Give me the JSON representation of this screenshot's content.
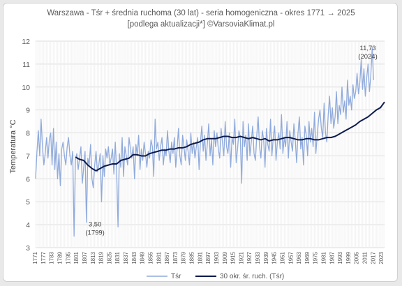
{
  "chart_data": {
    "type": "line",
    "title_line1": "Warszawa - Tśr + średnia ruchoma (30 lat) - seria homogeniczna - okres 1771 → 2025",
    "title_line2": "[podlega aktualizacji*] ©VarsoviaKlimat.pl",
    "ylabel": "Temperatura °C",
    "xlabel": "",
    "ylim": [
      3,
      12
    ],
    "yticks": [
      3,
      4,
      5,
      6,
      7,
      8,
      9,
      10,
      11,
      12
    ],
    "xlim": [
      1771,
      2025
    ],
    "xticks": [
      1771,
      1777,
      1783,
      1789,
      1795,
      1801,
      1807,
      1813,
      1819,
      1825,
      1831,
      1837,
      1843,
      1849,
      1855,
      1861,
      1867,
      1873,
      1879,
      1885,
      1891,
      1897,
      1903,
      1909,
      1915,
      1921,
      1927,
      1933,
      1939,
      1945,
      1951,
      1957,
      1963,
      1969,
      1975,
      1981,
      1987,
      1993,
      1999,
      2005,
      2011,
      2017,
      2023
    ],
    "grid": true,
    "legend_position": "bottom",
    "colors": {
      "annual": "#8faadc",
      "moving_avg": "#0d1b4c"
    },
    "series": [
      {
        "name": "Tśr",
        "x_start": 1771,
        "values": [
          6.0,
          7.2,
          8.1,
          7.0,
          8.6,
          7.4,
          6.6,
          7.1,
          7.8,
          6.9,
          7.7,
          8.0,
          6.6,
          8.2,
          6.4,
          7.6,
          6.0,
          7.1,
          5.7,
          7.3,
          7.6,
          7.0,
          6.6,
          7.4,
          7.8,
          7.0,
          6.6,
          7.2,
          3.5,
          6.8,
          7.1,
          6.4,
          6.9,
          7.4,
          5.8,
          6.5,
          7.2,
          4.1,
          6.9,
          6.6,
          7.5,
          6.0,
          5.6,
          6.6,
          7.2,
          6.3,
          6.6,
          7.1,
          5.0,
          7.0,
          6.1,
          7.3,
          6.9,
          7.4,
          6.6,
          6.9,
          7.3,
          6.2,
          7.6,
          6.3,
          3.9,
          7.1,
          6.5,
          7.8,
          6.1,
          7.4,
          7.0,
          6.6,
          7.8,
          7.3,
          6.9,
          7.4,
          6.0,
          7.5,
          7.0,
          7.9,
          6.4,
          7.3,
          6.8,
          7.6,
          7.1,
          6.5,
          7.2,
          6.9,
          7.7,
          7.4,
          6.1,
          8.6,
          7.3,
          7.6,
          6.8,
          7.4,
          7.8,
          6.6,
          7.3,
          7.0,
          8.1,
          7.2,
          6.7,
          7.6,
          7.1,
          7.8,
          6.5,
          7.3,
          8.2,
          7.0,
          6.6,
          7.9,
          7.4,
          6.8,
          7.7,
          7.2,
          6.6,
          8.0,
          7.1,
          7.6,
          6.9,
          7.4,
          7.8,
          6.4,
          7.6,
          8.3,
          7.2,
          7.9,
          6.8,
          7.5,
          8.4,
          7.0,
          7.7,
          6.6,
          8.1,
          7.4,
          8.0,
          7.3,
          6.9,
          8.2,
          7.6,
          7.0,
          8.5,
          7.4,
          7.1,
          8.0,
          6.5,
          7.8,
          7.5,
          8.6,
          6.7,
          7.3,
          8.1,
          7.8,
          5.8,
          8.5,
          7.4,
          7.9,
          6.8,
          8.4,
          7.0,
          7.6,
          8.3,
          7.1,
          6.8,
          7.9,
          8.7,
          7.4,
          6.9,
          8.1,
          7.7,
          6.5,
          8.2,
          7.5,
          7.2,
          8.6,
          7.0,
          7.8,
          8.3,
          6.8,
          7.6,
          8.0,
          7.3,
          8.8,
          7.1,
          7.8,
          7.4,
          8.5,
          6.9,
          8.1,
          7.6,
          7.2,
          8.4,
          7.7,
          6.7,
          8.0,
          8.7,
          7.3,
          7.8,
          6.6,
          8.3,
          7.9,
          7.0,
          8.5,
          7.6,
          8.2,
          7.4,
          8.9,
          7.1,
          7.9,
          8.6,
          9.0,
          8.2,
          7.8,
          9.3,
          8.0,
          7.6,
          8.8,
          9.6,
          8.4,
          9.1,
          8.2,
          8.7,
          9.8,
          8.4,
          9.2,
          8.8,
          10.0,
          8.9,
          9.4,
          8.6,
          10.3,
          9.2,
          9.6,
          9.0,
          10.1,
          9.5,
          9.8,
          10.6,
          9.7,
          10.2,
          11.2,
          9.9,
          10.8,
          9.6,
          10.4,
          11.0,
          9.8,
          10.5,
          11.73,
          10.3
        ],
        "annotation_min": {
          "year": 1799,
          "value": 3.5,
          "label": "3,50",
          "label_year": "(1799)"
        },
        "annotation_max": {
          "year": 2024,
          "value": 11.73,
          "label": "11,73",
          "label_year": "(2024)"
        }
      },
      {
        "name": "30 okr. śr. ruch. (Tśr)",
        "points": [
          [
            1800,
            6.95
          ],
          [
            1803,
            6.85
          ],
          [
            1806,
            6.8
          ],
          [
            1809,
            6.6
          ],
          [
            1812,
            6.45
          ],
          [
            1815,
            6.35
          ],
          [
            1818,
            6.45
          ],
          [
            1821,
            6.55
          ],
          [
            1824,
            6.6
          ],
          [
            1827,
            6.65
          ],
          [
            1830,
            6.65
          ],
          [
            1833,
            6.8
          ],
          [
            1836,
            6.85
          ],
          [
            1839,
            6.9
          ],
          [
            1842,
            7.05
          ],
          [
            1845,
            7.05
          ],
          [
            1848,
            7.0
          ],
          [
            1851,
            7.0
          ],
          [
            1854,
            7.1
          ],
          [
            1857,
            7.15
          ],
          [
            1860,
            7.2
          ],
          [
            1863,
            7.25
          ],
          [
            1866,
            7.25
          ],
          [
            1869,
            7.3
          ],
          [
            1872,
            7.3
          ],
          [
            1875,
            7.35
          ],
          [
            1878,
            7.35
          ],
          [
            1881,
            7.4
          ],
          [
            1884,
            7.5
          ],
          [
            1887,
            7.55
          ],
          [
            1890,
            7.6
          ],
          [
            1893,
            7.7
          ],
          [
            1896,
            7.75
          ],
          [
            1899,
            7.75
          ],
          [
            1902,
            7.75
          ],
          [
            1905,
            7.8
          ],
          [
            1908,
            7.85
          ],
          [
            1911,
            7.85
          ],
          [
            1914,
            7.8
          ],
          [
            1917,
            7.8
          ],
          [
            1920,
            7.85
          ],
          [
            1923,
            7.8
          ],
          [
            1926,
            7.75
          ],
          [
            1929,
            7.8
          ],
          [
            1932,
            7.75
          ],
          [
            1935,
            7.7
          ],
          [
            1938,
            7.75
          ],
          [
            1941,
            7.65
          ],
          [
            1944,
            7.7
          ],
          [
            1947,
            7.7
          ],
          [
            1950,
            7.75
          ],
          [
            1953,
            7.8
          ],
          [
            1956,
            7.8
          ],
          [
            1959,
            7.75
          ],
          [
            1962,
            7.7
          ],
          [
            1965,
            7.7
          ],
          [
            1968,
            7.75
          ],
          [
            1971,
            7.75
          ],
          [
            1974,
            7.7
          ],
          [
            1977,
            7.7
          ],
          [
            1980,
            7.75
          ],
          [
            1983,
            7.8
          ],
          [
            1986,
            7.8
          ],
          [
            1989,
            7.85
          ],
          [
            1992,
            7.95
          ],
          [
            1995,
            8.05
          ],
          [
            1998,
            8.15
          ],
          [
            2001,
            8.25
          ],
          [
            2004,
            8.35
          ],
          [
            2007,
            8.5
          ],
          [
            2010,
            8.6
          ],
          [
            2013,
            8.7
          ],
          [
            2016,
            8.85
          ],
          [
            2019,
            9.0
          ],
          [
            2022,
            9.1
          ],
          [
            2025,
            9.35
          ]
        ]
      }
    ]
  }
}
